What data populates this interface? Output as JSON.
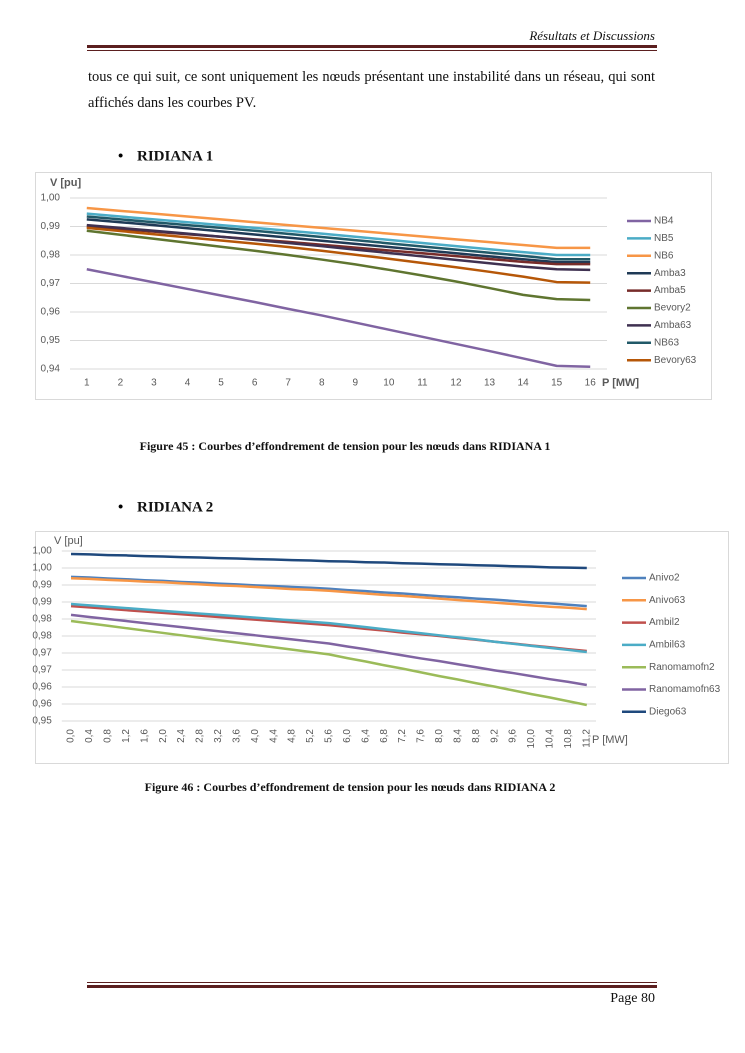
{
  "header": {
    "title": "Résultats et Discussions"
  },
  "body": {
    "paragraph": "tous ce qui suit, ce sont uniquement les nœuds présentant une instabilité dans un réseau, qui sont affichés dans les courbes PV."
  },
  "footer": {
    "page": "Page 80"
  },
  "chart_data": [
    {
      "type": "line",
      "heading": "RIDIANA 1",
      "caption": "Figure 45 : Courbes d’effondrement de tension pour les nœuds dans RIDIANA 1",
      "ylabel": "V [pu]",
      "xlabel": "P [MW]",
      "categories": [
        "1",
        "2",
        "3",
        "4",
        "5",
        "6",
        "7",
        "8",
        "9",
        "10",
        "11",
        "12",
        "13",
        "14",
        "15",
        "16"
      ],
      "ylim": [
        0.94,
        1.0
      ],
      "yticks": [
        {
          "value": 0.94,
          "label": "0,94"
        },
        {
          "value": 0.95,
          "label": "0,95"
        },
        {
          "value": 0.96,
          "label": "0,96"
        },
        {
          "value": 0.97,
          "label": "0,97"
        },
        {
          "value": 0.98,
          "label": "0,98"
        },
        {
          "value": 0.99,
          "label": "0,99"
        },
        {
          "value": 1.0,
          "label": "1,00"
        }
      ],
      "grid": true,
      "legend": "right",
      "series": [
        {
          "name": "NB4",
          "color": "#8064a2",
          "values": [
            0.975,
            0.9727,
            0.9704,
            0.9681,
            0.9658,
            0.9635,
            0.9611,
            0.9588,
            0.9563,
            0.9538,
            0.9513,
            0.9488,
            0.9463,
            0.9437,
            0.9411,
            0.9408
          ]
        },
        {
          "name": "NB5",
          "color": "#4bacc6",
          "values": [
            0.9945,
            0.9935,
            0.9925,
            0.9915,
            0.9905,
            0.9895,
            0.9885,
            0.9875,
            0.9864,
            0.9853,
            0.9842,
            0.9831,
            0.982,
            0.981,
            0.98,
            0.98
          ]
        },
        {
          "name": "NB6",
          "color": "#f79646",
          "values": [
            0.9965,
            0.9955,
            0.9945,
            0.9935,
            0.9925,
            0.9915,
            0.9905,
            0.9895,
            0.9885,
            0.9875,
            0.9865,
            0.9855,
            0.9845,
            0.9835,
            0.9825,
            0.9825
          ]
        },
        {
          "name": "Amba3",
          "color": "#1f3a56",
          "values": [
            0.9925,
            0.9915,
            0.9905,
            0.9894,
            0.9883,
            0.9872,
            0.9861,
            0.985,
            0.9839,
            0.9828,
            0.9817,
            0.9806,
            0.9795,
            0.9785,
            0.9775,
            0.9775
          ]
        },
        {
          "name": "Amba5",
          "color": "#772c2a",
          "values": [
            0.99,
            0.9891,
            0.9882,
            0.9873,
            0.9864,
            0.9855,
            0.9846,
            0.9836,
            0.9826,
            0.9816,
            0.9806,
            0.9796,
            0.9786,
            0.9776,
            0.9768,
            0.9768
          ]
        },
        {
          "name": "Bevory2",
          "color": "#5f7530",
          "values": [
            0.9885,
            0.9871,
            0.9857,
            0.9843,
            0.9829,
            0.9815,
            0.98,
            0.9784,
            0.9767,
            0.9748,
            0.9728,
            0.9707,
            0.9684,
            0.966,
            0.9645,
            0.9642
          ]
        },
        {
          "name": "Amba63",
          "color": "#3f3151",
          "values": [
            0.9905,
            0.9895,
            0.9885,
            0.9875,
            0.9864,
            0.9853,
            0.9842,
            0.9831,
            0.9819,
            0.9807,
            0.9795,
            0.9783,
            0.9771,
            0.9759,
            0.975,
            0.9748
          ]
        },
        {
          "name": "NB63",
          "color": "#215968",
          "values": [
            0.9935,
            0.9925,
            0.9915,
            0.9905,
            0.9895,
            0.9885,
            0.9874,
            0.9863,
            0.9852,
            0.9841,
            0.983,
            0.9819,
            0.9808,
            0.9797,
            0.9785,
            0.9785
          ]
        },
        {
          "name": "Bevory63",
          "color": "#b65708",
          "values": [
            0.9895,
            0.9884,
            0.9873,
            0.9862,
            0.9851,
            0.984,
            0.9828,
            0.9815,
            0.9801,
            0.9787,
            0.9772,
            0.9757,
            0.9741,
            0.9724,
            0.9705,
            0.9703
          ]
        }
      ]
    },
    {
      "type": "line",
      "heading": "RIDIANA 2",
      "caption": "Figure 46 : Courbes d’effondrement de tension pour les nœuds dans RIDIANA 2",
      "ylabel": "V [pu]",
      "xlabel": "P [MW]",
      "categories": [
        "0,0",
        "0,4",
        "0,8",
        "1,2",
        "1,6",
        "2,0",
        "2,4",
        "2,8",
        "3,2",
        "3,6",
        "4,0",
        "4,4",
        "4,8",
        "5,2",
        "5,6",
        "6,0",
        "6,4",
        "6,8",
        "7,2",
        "7,6",
        "8,0",
        "8,4",
        "8,8",
        "9,2",
        "9,6",
        "10,0",
        "10,4",
        "10,8",
        "11,2"
      ],
      "ylim": [
        0.95,
        1.0
      ],
      "yticks": [
        {
          "value": 0.95,
          "label": "0,95"
        },
        {
          "value": 0.955,
          "label": "0,96"
        },
        {
          "value": 0.96,
          "label": "0,96"
        },
        {
          "value": 0.965,
          "label": "0,97"
        },
        {
          "value": 0.97,
          "label": "0,97"
        },
        {
          "value": 0.975,
          "label": "0,98"
        },
        {
          "value": 0.98,
          "label": "0,98"
        },
        {
          "value": 0.985,
          "label": "0,99"
        },
        {
          "value": 0.99,
          "label": "0,99"
        },
        {
          "value": 0.995,
          "label": "1,00"
        },
        {
          "value": 1.0,
          "label": "1,00"
        }
      ],
      "grid": true,
      "legend": "right",
      "series": [
        {
          "name": "Anivo2",
          "color": "#4f81bd",
          "values": [
            0.9924,
            0.9922,
            0.9919,
            0.9917,
            0.9914,
            0.9912,
            0.9909,
            0.9907,
            0.9904,
            0.9902,
            0.9899,
            0.9897,
            0.9894,
            0.9892,
            0.9889,
            0.9885,
            0.9882,
            0.9878,
            0.9875,
            0.9871,
            0.9867,
            0.9864,
            0.986,
            0.9857,
            0.9853,
            0.9849,
            0.9846,
            0.9842,
            0.9838
          ]
        },
        {
          "name": "Anivo63",
          "color": "#f79646",
          "values": [
            0.992,
            0.9918,
            0.9915,
            0.9913,
            0.991,
            0.9908,
            0.9905,
            0.9902,
            0.9899,
            0.9897,
            0.9894,
            0.9891,
            0.9888,
            0.9886,
            0.9883,
            0.9879,
            0.9875,
            0.9871,
            0.9868,
            0.9864,
            0.986,
            0.9856,
            0.9852,
            0.9848,
            0.9844,
            0.984,
            0.9836,
            0.9833,
            0.9829
          ]
        },
        {
          "name": "Ambil2",
          "color": "#c0504d",
          "values": [
            0.9838,
            0.9834,
            0.983,
            0.9826,
            0.9822,
            0.9818,
            0.9814,
            0.981,
            0.9806,
            0.9802,
            0.9798,
            0.9794,
            0.979,
            0.9786,
            0.9782,
            0.9777,
            0.9771,
            0.9766,
            0.976,
            0.9755,
            0.975,
            0.9744,
            0.9739,
            0.9733,
            0.9728,
            0.9722,
            0.9717,
            0.9711,
            0.9706
          ]
        },
        {
          "name": "Ambil63",
          "color": "#4bacc6",
          "values": [
            0.9844,
            0.984,
            0.9836,
            0.9832,
            0.9828,
            0.9824,
            0.982,
            0.9816,
            0.9812,
            0.9808,
            0.9804,
            0.98,
            0.9796,
            0.9792,
            0.9788,
            0.9782,
            0.9776,
            0.977,
            0.9764,
            0.9758,
            0.9752,
            0.9746,
            0.974,
            0.9733,
            0.9727,
            0.9721,
            0.9715,
            0.9709,
            0.9703
          ]
        },
        {
          "name": "Ranomamofn2",
          "color": "#9bbb59",
          "values": [
            0.9794,
            0.9787,
            0.978,
            0.9773,
            0.9766,
            0.9759,
            0.9752,
            0.9745,
            0.9738,
            0.9731,
            0.9724,
            0.9717,
            0.971,
            0.9703,
            0.9696,
            0.9685,
            0.9675,
            0.9664,
            0.9654,
            0.9643,
            0.9632,
            0.9622,
            0.9611,
            0.9601,
            0.959,
            0.9579,
            0.9569,
            0.9558,
            0.9547
          ]
        },
        {
          "name": "Ranomamofn63",
          "color": "#8064a2",
          "values": [
            0.9812,
            0.9806,
            0.98,
            0.9794,
            0.9788,
            0.9782,
            0.9776,
            0.977,
            0.9764,
            0.9758,
            0.9752,
            0.9746,
            0.974,
            0.9734,
            0.9728,
            0.9719,
            0.9711,
            0.9702,
            0.9693,
            0.9684,
            0.9676,
            0.9667,
            0.9658,
            0.9649,
            0.9641,
            0.9632,
            0.9623,
            0.9615,
            0.9606
          ]
        },
        {
          "name": "Diego63",
          "color": "#1f497d",
          "values": [
            0.9991,
            0.999,
            0.9988,
            0.9987,
            0.9985,
            0.9984,
            0.9982,
            0.9981,
            0.9979,
            0.9978,
            0.9976,
            0.9975,
            0.9973,
            0.9972,
            0.997,
            0.9969,
            0.9967,
            0.9966,
            0.9964,
            0.9963,
            0.9961,
            0.996,
            0.9958,
            0.9957,
            0.9955,
            0.9954,
            0.9952,
            0.9951,
            0.995
          ]
        }
      ]
    }
  ]
}
